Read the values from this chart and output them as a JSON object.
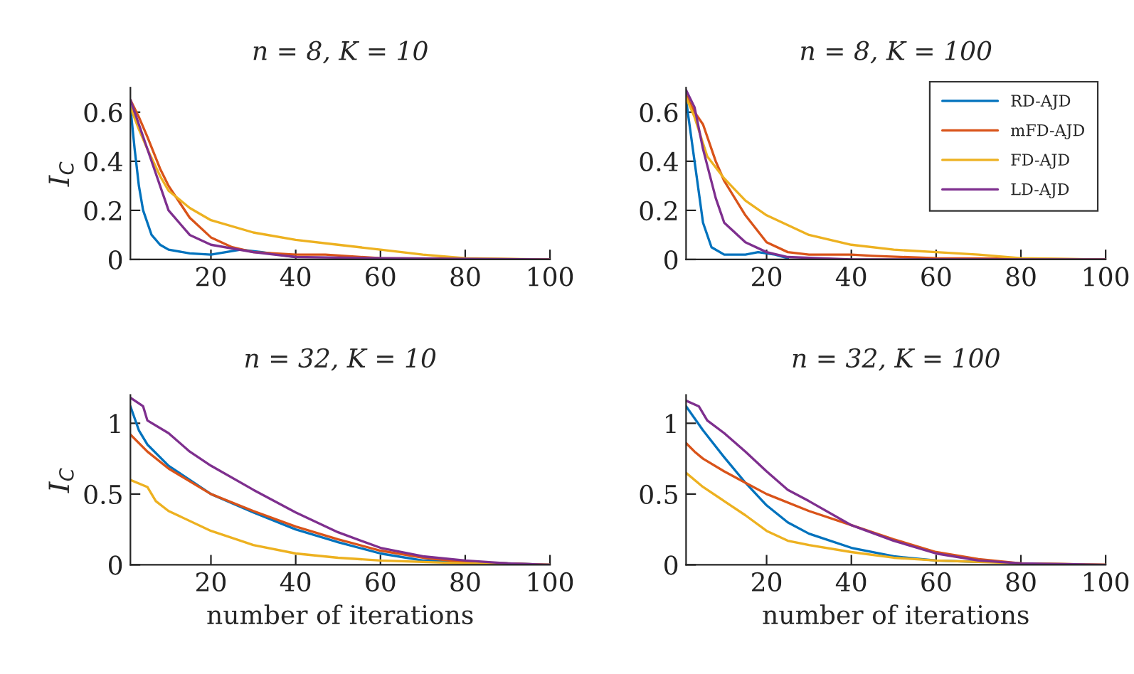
{
  "chart_data": [
    {
      "type": "line",
      "title": "n = 8, K = 10",
      "ylabel": "I$_{C}$",
      "xlim": [
        1,
        100
      ],
      "xticks": [
        20,
        40,
        60,
        80,
        100
      ],
      "ylim": [
        0,
        0.7
      ],
      "yticks": [
        0,
        0.2,
        0.4,
        0.6
      ],
      "grid": false,
      "legend": false,
      "tick_labels": "xy",
      "series": [
        {
          "color": "#0072bd",
          "x": [
            1,
            2,
            3,
            4,
            6,
            8,
            10,
            15,
            20,
            27,
            32,
            40
          ],
          "values": [
            0.62,
            0.45,
            0.3,
            0.2,
            0.1,
            0.06,
            0.04,
            0.025,
            0.02,
            0.04,
            0.03,
            0.01
          ]
        },
        {
          "color": "#d95319",
          "x": [
            1,
            3,
            5,
            8,
            10,
            15,
            20,
            25,
            30,
            40,
            47,
            60,
            100
          ],
          "values": [
            0.65,
            0.58,
            0.5,
            0.37,
            0.3,
            0.17,
            0.09,
            0.05,
            0.03,
            0.02,
            0.02,
            0.005,
            0
          ]
        },
        {
          "color": "#edb120",
          "x": [
            1,
            3,
            5,
            8,
            10,
            15,
            20,
            30,
            40,
            50,
            60,
            70,
            80,
            100
          ],
          "values": [
            0.62,
            0.53,
            0.45,
            0.34,
            0.28,
            0.21,
            0.16,
            0.11,
            0.08,
            0.06,
            0.04,
            0.02,
            0.005,
            0
          ]
        },
        {
          "color": "#7e2f8e",
          "x": [
            1,
            3,
            5,
            8,
            10,
            15,
            20,
            30,
            40,
            60,
            100
          ],
          "values": [
            0.65,
            0.55,
            0.45,
            0.3,
            0.2,
            0.1,
            0.06,
            0.03,
            0.01,
            0.005,
            0
          ]
        }
      ]
    },
    {
      "type": "line",
      "title": "n = 8, K = 100",
      "xlim": [
        1,
        100
      ],
      "xticks": [
        20,
        40,
        60,
        80,
        100
      ],
      "ylim": [
        0,
        0.7
      ],
      "yticks": [
        0,
        0.2,
        0.4,
        0.6
      ],
      "grid": false,
      "legend": "top right",
      "series": [
        {
          "name": "RD-AJD",
          "color": "#0072bd",
          "x": [
            1,
            3,
            5,
            7,
            10,
            15,
            18,
            22,
            25
          ],
          "values": [
            0.65,
            0.4,
            0.15,
            0.05,
            0.02,
            0.02,
            0.03,
            0.02,
            0.005
          ]
        },
        {
          "name": "mFD-AJD",
          "color": "#d95319",
          "x": [
            1,
            3,
            5,
            8,
            10,
            15,
            20,
            25,
            30,
            40,
            45,
            60,
            100
          ],
          "values": [
            0.67,
            0.6,
            0.55,
            0.4,
            0.32,
            0.18,
            0.07,
            0.03,
            0.02,
            0.02,
            0.015,
            0.005,
            0
          ]
        },
        {
          "name": "FD-AJD",
          "color": "#edb120",
          "x": [
            1,
            3,
            6,
            10,
            15,
            20,
            30,
            40,
            50,
            60,
            70,
            80,
            100
          ],
          "values": [
            0.66,
            0.58,
            0.42,
            0.33,
            0.24,
            0.18,
            0.1,
            0.06,
            0.04,
            0.03,
            0.02,
            0.005,
            0
          ]
        },
        {
          "name": "LD-AJD",
          "color": "#7e2f8e",
          "x": [
            1,
            3,
            5,
            8,
            10,
            15,
            20,
            25,
            40,
            100
          ],
          "values": [
            0.69,
            0.62,
            0.45,
            0.25,
            0.15,
            0.07,
            0.03,
            0.01,
            0,
            0
          ]
        }
      ]
    },
    {
      "type": "line",
      "title": "n = 32, K = 10",
      "xlabel": "number of iterations",
      "ylabel": "I$_{C}$",
      "xlim": [
        1,
        100
      ],
      "xticks": [
        20,
        40,
        60,
        80,
        100
      ],
      "ylim": [
        0,
        1.2
      ],
      "yticks": [
        0,
        0.5,
        1
      ],
      "grid": false,
      "legend": false,
      "series": [
        {
          "color": "#0072bd",
          "x": [
            1,
            3,
            5,
            10,
            20,
            30,
            40,
            50,
            60,
            70,
            80,
            100
          ],
          "values": [
            1.12,
            0.95,
            0.85,
            0.7,
            0.5,
            0.37,
            0.25,
            0.16,
            0.08,
            0.03,
            0.02,
            0
          ]
        },
        {
          "color": "#d95319",
          "x": [
            1,
            5,
            10,
            20,
            30,
            40,
            50,
            60,
            70,
            80,
            100
          ],
          "values": [
            0.92,
            0.8,
            0.68,
            0.5,
            0.38,
            0.27,
            0.18,
            0.1,
            0.05,
            0.02,
            0
          ]
        },
        {
          "color": "#edb120",
          "x": [
            1,
            5,
            7,
            10,
            20,
            30,
            40,
            50,
            60,
            70,
            80,
            100
          ],
          "values": [
            0.6,
            0.55,
            0.45,
            0.38,
            0.24,
            0.14,
            0.08,
            0.05,
            0.03,
            0.02,
            0.01,
            0
          ]
        },
        {
          "color": "#7e2f8e",
          "x": [
            1,
            4,
            5,
            10,
            15,
            20,
            30,
            40,
            50,
            60,
            70,
            80,
            90,
            100
          ],
          "values": [
            1.18,
            1.12,
            1.02,
            0.93,
            0.8,
            0.7,
            0.53,
            0.37,
            0.23,
            0.12,
            0.06,
            0.03,
            0.01,
            0
          ]
        }
      ]
    },
    {
      "type": "line",
      "title": "n = 32, K = 100",
      "xlabel": "number of iterations",
      "xlim": [
        1,
        100
      ],
      "xticks": [
        20,
        40,
        60,
        80,
        100
      ],
      "ylim": [
        0,
        1.2
      ],
      "yticks": [
        0,
        0.5,
        1
      ],
      "grid": false,
      "legend": false,
      "series": [
        {
          "color": "#0072bd",
          "x": [
            1,
            5,
            10,
            15,
            20,
            25,
            30,
            40,
            50,
            60,
            70
          ],
          "values": [
            1.12,
            0.95,
            0.76,
            0.58,
            0.42,
            0.3,
            0.22,
            0.12,
            0.06,
            0.03,
            0.02
          ]
        },
        {
          "color": "#d95319",
          "x": [
            1,
            3,
            5,
            10,
            15,
            20,
            30,
            40,
            50,
            60,
            70,
            80,
            100
          ],
          "values": [
            0.86,
            0.8,
            0.75,
            0.66,
            0.58,
            0.5,
            0.38,
            0.28,
            0.18,
            0.09,
            0.04,
            0.01,
            0
          ]
        },
        {
          "color": "#edb120",
          "x": [
            1,
            5,
            10,
            15,
            20,
            25,
            30,
            40,
            50,
            60,
            70,
            80,
            100
          ],
          "values": [
            0.65,
            0.55,
            0.45,
            0.35,
            0.24,
            0.17,
            0.14,
            0.09,
            0.05,
            0.03,
            0.02,
            0.01,
            0
          ]
        },
        {
          "color": "#7e2f8e",
          "x": [
            1,
            4,
            6,
            10,
            15,
            20,
            25,
            30,
            40,
            50,
            60,
            70,
            80,
            100
          ],
          "values": [
            1.16,
            1.12,
            1.02,
            0.93,
            0.8,
            0.66,
            0.53,
            0.45,
            0.28,
            0.17,
            0.08,
            0.03,
            0.01,
            0
          ]
        }
      ]
    }
  ]
}
